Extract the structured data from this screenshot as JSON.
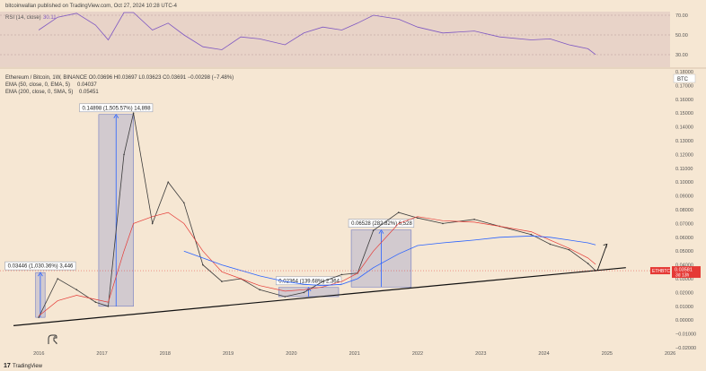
{
  "header": {
    "attribution": "bitcoinwallan published on TradingView.com, Oct 27, 2024 10:28 UTC-4"
  },
  "rsi_panel": {
    "label": "RSI (14, close)",
    "value": "30.11",
    "levels": [
      "70.00",
      "50.00",
      "30.00"
    ]
  },
  "main_legend": {
    "symbol_line": "Ethereum / Bitcoin, 1W, BINANCE O0.03696 H0.03697 L0.03623 C0.03691 −0.00298 (−7.48%)",
    "ema_fast": {
      "label": "EMA (50, close, 0, EMA, 5)",
      "value": "0.04037",
      "color": "#e53935"
    },
    "ema_slow": {
      "label": "EMA (200, close, 0, SMA, 5)",
      "value": "0.05451",
      "color": "#2962ff"
    }
  },
  "currency_badge": "BTC",
  "price_axis": {
    "labels": [
      "0.18000",
      "0.17000",
      "0.16000",
      "0.15000",
      "0.14000",
      "0.13000",
      "0.12000",
      "0.11000",
      "0.10000",
      "0.09000",
      "0.08000",
      "0.07000",
      "0.06000",
      "0.05000",
      "0.04000",
      "0.03000",
      "0.02000",
      "0.01000",
      "0.00000",
      "−0.01000",
      "−0.02000"
    ]
  },
  "last_price": {
    "symbol": "ETHBTC",
    "value": "0.03581",
    "countdown": "3d 13h"
  },
  "annotations": [
    {
      "text": "0.03446 (1,030.36%) 3,446"
    },
    {
      "text": "0.14898 (1,505.57%) 14,898"
    },
    {
      "text": "0.02364 (139.68%) 2,364"
    },
    {
      "text": "0.06528 (282.82%) 6,528"
    }
  ],
  "brand": "TradingView",
  "chart_data": {
    "type": "line",
    "title": "Ethereum / Bitcoin, 1W, BINANCE",
    "xlabel": "",
    "ylabel": "",
    "x": [
      2016.0,
      2016.3,
      2016.6,
      2016.9,
      2017.1,
      2017.35,
      2017.5,
      2017.8,
      2018.05,
      2018.3,
      2018.6,
      2018.9,
      2019.2,
      2019.5,
      2019.9,
      2020.2,
      2020.5,
      2020.8,
      2021.05,
      2021.3,
      2021.7,
      2022.0,
      2022.4,
      2022.9,
      2023.3,
      2023.8,
      2024.1,
      2024.4,
      2024.7,
      2024.82
    ],
    "ylim": [
      -0.02,
      0.18
    ],
    "xlim": [
      2015.5,
      2026.0
    ],
    "series": [
      {
        "name": "Ethereum / Bitcoin",
        "values": [
          0.002,
          0.03,
          0.022,
          0.013,
          0.01,
          0.12,
          0.15,
          0.07,
          0.1,
          0.085,
          0.04,
          0.028,
          0.03,
          0.022,
          0.017,
          0.02,
          0.028,
          0.033,
          0.034,
          0.065,
          0.078,
          0.074,
          0.07,
          0.073,
          0.068,
          0.062,
          0.055,
          0.051,
          0.041,
          0.0358
        ]
      },
      {
        "name": "EMA (50, close, 0, EMA, 5)",
        "values": [
          0.003,
          0.014,
          0.018,
          0.015,
          0.013,
          0.05,
          0.07,
          0.075,
          0.078,
          0.07,
          0.05,
          0.035,
          0.03,
          0.025,
          0.021,
          0.022,
          0.024,
          0.028,
          0.034,
          0.05,
          0.07,
          0.075,
          0.072,
          0.071,
          0.068,
          0.064,
          0.058,
          0.052,
          0.045,
          0.0404
        ]
      },
      {
        "name": "EMA (200, close, 0, SMA, 5)",
        "values": [
          null,
          null,
          null,
          null,
          null,
          null,
          null,
          null,
          null,
          0.05,
          0.045,
          0.04,
          0.036,
          0.032,
          0.028,
          0.026,
          0.025,
          0.026,
          0.03,
          0.038,
          0.048,
          0.054,
          0.056,
          0.058,
          0.06,
          0.061,
          0.06,
          0.058,
          0.056,
          0.0545
        ]
      }
    ],
    "measurements": [
      {
        "from_x": 2015.95,
        "to_x": 2016.1,
        "from_y": 0.002,
        "to_y": 0.03446,
        "label": "0.03446 (1,030.36%) 3,446"
      },
      {
        "from_x": 2016.95,
        "to_x": 2017.5,
        "from_y": 0.01,
        "to_y": 0.14898,
        "label": "0.14898 (1,505.57%) 14,898"
      },
      {
        "from_x": 2019.8,
        "to_x": 2020.75,
        "from_y": 0.017,
        "to_y": 0.02364,
        "label": "0.02364 (139.68%) 2,364"
      },
      {
        "from_x": 2020.95,
        "to_x": 2021.9,
        "from_y": 0.024,
        "to_y": 0.06528,
        "label": "0.06528 (282.82%) 6,528"
      }
    ],
    "trendline": {
      "from": [
        2015.6,
        -0.004
      ],
      "to": [
        2025.3,
        0.038
      ]
    },
    "projection_arrow": {
      "from": [
        2024.85,
        0.036
      ],
      "to": [
        2025.0,
        0.055
      ]
    },
    "x_tick_labels": [
      "2016",
      "2017",
      "2018",
      "2019",
      "2020",
      "2021",
      "2022",
      "2023",
      "2024",
      "2025",
      "2026"
    ],
    "rsi_values": [
      55,
      68,
      72,
      60,
      45,
      80,
      82,
      55,
      62,
      50,
      38,
      35,
      48,
      46,
      40,
      52,
      58,
      55,
      62,
      70,
      66,
      58,
      52,
      54,
      48,
      45,
      46,
      40,
      36,
      30.11
    ]
  }
}
